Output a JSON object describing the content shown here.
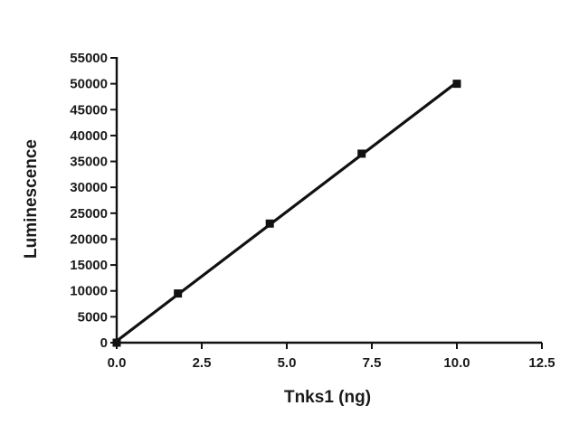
{
  "chart_data": {
    "type": "line",
    "title": "",
    "xlabel": "Tnks1 (ng)",
    "ylabel": "Luminescence",
    "xlim": [
      0,
      12.5
    ],
    "ylim": [
      0,
      55000
    ],
    "x_ticks": [
      "0.0",
      "2.5",
      "5.0",
      "7.5",
      "10.0",
      "12.5"
    ],
    "y_ticks": [
      "0",
      "5000",
      "10000",
      "15000",
      "20000",
      "25000",
      "30000",
      "35000",
      "40000",
      "45000",
      "50000",
      "55000"
    ],
    "grid": false,
    "series": [
      {
        "x": [
          0,
          1.8,
          4.5,
          7.2,
          10
        ],
        "y": [
          0,
          9500,
          23000,
          36500,
          50000
        ],
        "fit_line": true,
        "marker": "square",
        "color": "#111111"
      }
    ]
  }
}
